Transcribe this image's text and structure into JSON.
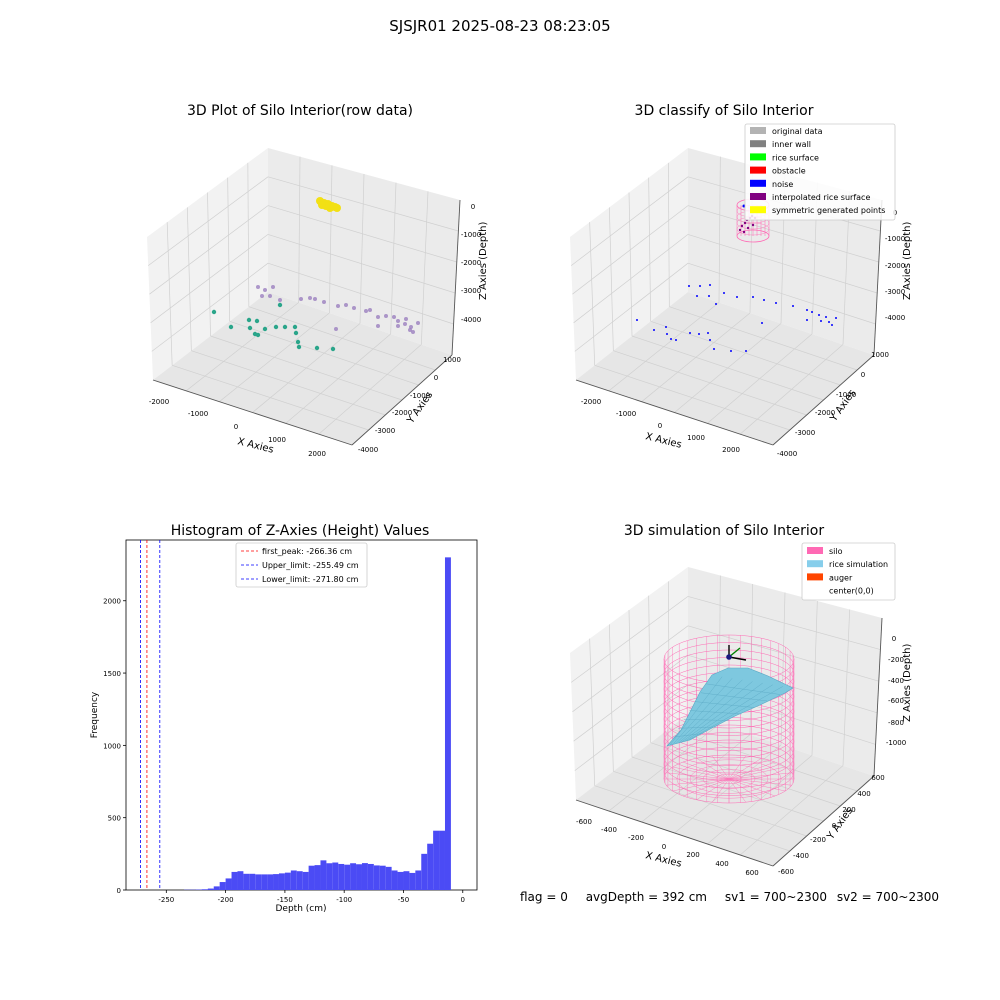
{
  "suptitle": "SJSJR01 2025-08-23 08:23:05",
  "footer": {
    "flag": "flag = 0",
    "avg": "avgDepth = 392 cm",
    "sv1": "sv1 = 700~2300",
    "sv2": "sv2 = 700~2300"
  },
  "chart_data": [
    {
      "type": "scatter",
      "dimension": "3d",
      "title": "3D Plot of Silo Interior(row data)",
      "xlabel": "X Axies",
      "ylabel": "Y Axies",
      "zlabel": "Z Axies (Depth)",
      "x_ticks": [
        -2000,
        -1000,
        0,
        1000,
        2000
      ],
      "y_ticks": [
        1000,
        0,
        -1000,
        -2000,
        -3000,
        -4000
      ],
      "z_ticks": [
        0,
        -1000,
        -2000,
        -3000,
        -4000
      ],
      "colors": {
        "cluster_top": "#f2e015",
        "near": "#2aa58a",
        "far": "#9b7fbf"
      },
      "clusters": [
        {
          "name": "top",
          "approx_z": 0,
          "approx_count": 8
        },
        {
          "name": "ring",
          "approx_z": -4000,
          "approx_count": 55
        }
      ]
    },
    {
      "type": "scatter",
      "dimension": "3d",
      "title": "3D classify of Silo Interior",
      "xlabel": "X Axies",
      "ylabel": "Y Axies",
      "zlabel": "Z Axies (Depth)",
      "x_ticks": [
        -2000,
        -1000,
        0,
        1000,
        2000
      ],
      "y_ticks": [
        1000,
        0,
        -1000,
        -2000,
        -3000,
        -4000
      ],
      "z_ticks": [
        0,
        -1000,
        -2000,
        -3000,
        -4000
      ],
      "legend_position": "top-right",
      "legend": [
        {
          "label": "original data",
          "color": "#b3b3b3"
        },
        {
          "label": "inner wall",
          "color": "#808080"
        },
        {
          "label": "rice surface",
          "color": "#00ff00"
        },
        {
          "label": "obstacle",
          "color": "#ff0000"
        },
        {
          "label": "noise",
          "color": "#0000ff"
        },
        {
          "label": "interpolated rice surface",
          "color": "#800080"
        },
        {
          "label": "symmetric generated points",
          "color": "#ffff00"
        }
      ]
    },
    {
      "type": "bar",
      "subtype": "histogram",
      "title": "Histogram of Z-Axies (Height) Values",
      "xlabel": "Depth (cm)",
      "ylabel": "Frequency",
      "xlim": [
        -284,
        12
      ],
      "ylim": [
        0,
        2420
      ],
      "x_ticks": [
        -250,
        -200,
        -150,
        -100,
        -50,
        0
      ],
      "y_ticks": [
        0,
        500,
        1000,
        1500,
        2000
      ],
      "bar_color": "#4b4bf5",
      "bins": [
        {
          "start": -235,
          "end": -230,
          "value": 2
        },
        {
          "start": -230,
          "end": -225,
          "value": 2
        },
        {
          "start": -225,
          "end": -220,
          "value": 3
        },
        {
          "start": -220,
          "end": -215,
          "value": 5
        },
        {
          "start": -215,
          "end": -210,
          "value": 10
        },
        {
          "start": -210,
          "end": -205,
          "value": 25
        },
        {
          "start": -205,
          "end": -200,
          "value": 55
        },
        {
          "start": -200,
          "end": -195,
          "value": 80
        },
        {
          "start": -195,
          "end": -190,
          "value": 125
        },
        {
          "start": -190,
          "end": -185,
          "value": 130
        },
        {
          "start": -185,
          "end": -180,
          "value": 112
        },
        {
          "start": -180,
          "end": -175,
          "value": 112
        },
        {
          "start": -175,
          "end": -170,
          "value": 108
        },
        {
          "start": -170,
          "end": -165,
          "value": 108
        },
        {
          "start": -165,
          "end": -160,
          "value": 108
        },
        {
          "start": -160,
          "end": -155,
          "value": 110
        },
        {
          "start": -155,
          "end": -150,
          "value": 115
        },
        {
          "start": -150,
          "end": -145,
          "value": 120
        },
        {
          "start": -145,
          "end": -140,
          "value": 135
        },
        {
          "start": -140,
          "end": -135,
          "value": 130
        },
        {
          "start": -135,
          "end": -130,
          "value": 125
        },
        {
          "start": -130,
          "end": -125,
          "value": 168
        },
        {
          "start": -125,
          "end": -120,
          "value": 172
        },
        {
          "start": -120,
          "end": -115,
          "value": 205
        },
        {
          "start": -115,
          "end": -110,
          "value": 185
        },
        {
          "start": -110,
          "end": -105,
          "value": 190
        },
        {
          "start": -105,
          "end": -100,
          "value": 180
        },
        {
          "start": -100,
          "end": -95,
          "value": 175
        },
        {
          "start": -95,
          "end": -90,
          "value": 185
        },
        {
          "start": -90,
          "end": -85,
          "value": 178
        },
        {
          "start": -85,
          "end": -80,
          "value": 186
        },
        {
          "start": -80,
          "end": -75,
          "value": 180
        },
        {
          "start": -75,
          "end": -70,
          "value": 170
        },
        {
          "start": -70,
          "end": -65,
          "value": 168
        },
        {
          "start": -65,
          "end": -60,
          "value": 160
        },
        {
          "start": -60,
          "end": -55,
          "value": 135
        },
        {
          "start": -55,
          "end": -50,
          "value": 125
        },
        {
          "start": -50,
          "end": -45,
          "value": 130
        },
        {
          "start": -45,
          "end": -40,
          "value": 118
        },
        {
          "start": -40,
          "end": -35,
          "value": 135
        },
        {
          "start": -35,
          "end": -30,
          "value": 250
        },
        {
          "start": -30,
          "end": -25,
          "value": 320
        },
        {
          "start": -25,
          "end": -20,
          "value": 410
        },
        {
          "start": -20,
          "end": -15,
          "value": 410
        },
        {
          "start": -15,
          "end": -10,
          "value": 2300
        },
        {
          "start": -10,
          "end": -5,
          "value": 0
        }
      ],
      "vlines": [
        {
          "x": -266.36,
          "color": "#ff0000",
          "label": "first_peak: -266.36 cm"
        },
        {
          "x": -255.49,
          "color": "#0000ff",
          "label": "Upper_limit: -255.49 cm"
        },
        {
          "x": -271.8,
          "color": "#0000ff",
          "label": "Lower_limit: -271.80 cm"
        }
      ],
      "legend_position": "top-center"
    },
    {
      "type": "scatter",
      "dimension": "3d",
      "subtype": "wireframe-surface",
      "title": "3D simulation of Silo Interior",
      "xlabel": "X Axies",
      "ylabel": "Y Axies",
      "zlabel": "Z Axies (Depth)",
      "x_ticks": [
        -600,
        -400,
        -200,
        0,
        200,
        400,
        600
      ],
      "y_ticks": [
        600,
        400,
        200,
        0,
        -200,
        -400,
        -600
      ],
      "z_ticks": [
        0,
        -200,
        -400,
        -600,
        -800,
        -1000
      ],
      "legend_position": "top-right",
      "legend": [
        {
          "label": "silo",
          "color": "#ff69b4"
        },
        {
          "label": "rice simulation",
          "color": "#87ceeb"
        },
        {
          "label": "auger",
          "color": "#ff4500"
        },
        {
          "label": "center(0,0)",
          "color": "#ffffff"
        }
      ]
    }
  ]
}
